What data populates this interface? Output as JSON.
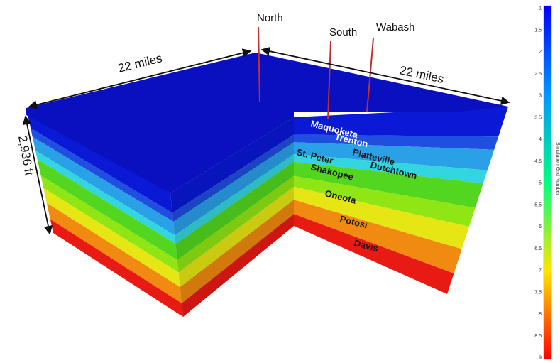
{
  "diagram": {
    "dimensions": {
      "left_width": "22 miles",
      "right_width": "22 miles",
      "thickness": "2,936 ft"
    },
    "wells": [
      "North",
      "South",
      "Wabash"
    ],
    "layers": [
      {
        "name": "Maquoketa",
        "color": "#0a19d6"
      },
      {
        "name": "Trenton",
        "color": "#1f4ee0"
      },
      {
        "name": "Platteville",
        "color": "#2aa0e6"
      },
      {
        "name": "Dutchtown",
        "color": "#33d6e0"
      },
      {
        "name": "St. Peter",
        "color": "#52d61f"
      },
      {
        "name": "Shakopee",
        "color": "#8fe614"
      },
      {
        "name": "Oneota",
        "color": "#e6e614"
      },
      {
        "name": "Potosi",
        "color": "#f08a10"
      },
      {
        "name": "Davis",
        "color": "#e81a14"
      }
    ],
    "top_color": "#0a0fc0"
  },
  "colorbar": {
    "title": "Simulation Grid Number",
    "ticks": [
      "1",
      "1.5",
      "2",
      "2.5",
      "3",
      "3.5",
      "4",
      "4.5",
      "5",
      "5.5",
      "6",
      "6.5",
      "7",
      "7.5",
      "8",
      "8.5",
      "9"
    ],
    "colors": [
      "#0000ff",
      "#0096ff",
      "#00ff80",
      "#ffe600",
      "#ff0000"
    ]
  }
}
